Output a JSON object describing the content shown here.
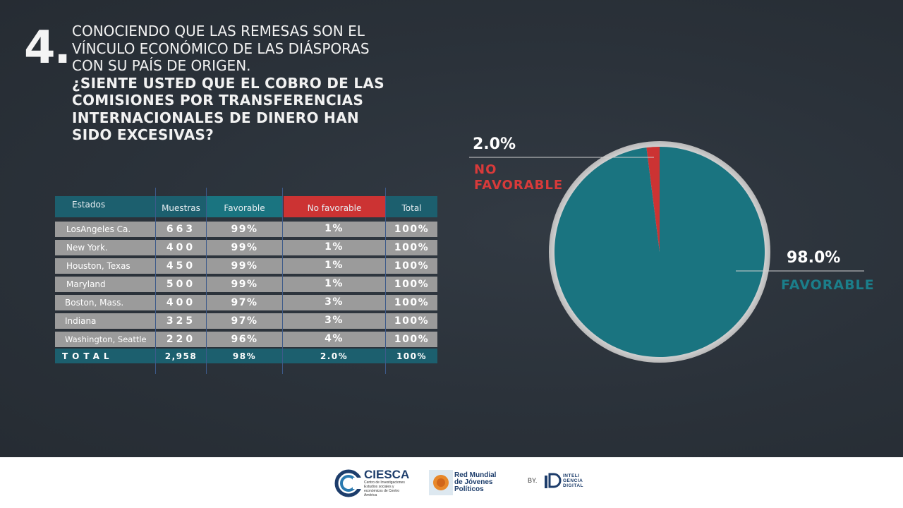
{
  "question": {
    "number": "4.",
    "intro": "CONOCIENDO QUE LAS REMESAS SON EL VÍNCULO ECONÓMICO DE LAS DIÁSPORAS CON SU PAÍS DE ORIGEN.",
    "ask": "¿SIENTE USTED  QUE EL COBRO DE LAS COMISIONES POR TRANSFERENCIAS INTERNACIONALES DE DINERO HAN SIDO EXCESIVAS?"
  },
  "table": {
    "headers": [
      "Estados",
      "Muestras",
      "Favorable",
      "No favorable",
      "Total"
    ],
    "rows": [
      {
        "state": "LosAngeles Ca.",
        "samples": "663",
        "favorable": "99%",
        "unfavorable": "1%",
        "total": "100%"
      },
      {
        "state": "New York.",
        "samples": "400",
        "favorable": "99%",
        "unfavorable": "1%",
        "total": "100%"
      },
      {
        "state": "Houston, Texas",
        "samples": "450",
        "favorable": "99%",
        "unfavorable": "1%",
        "total": "100%"
      },
      {
        "state": "Maryland",
        "samples": "500",
        "favorable": "99%",
        "unfavorable": "1%",
        "total": "100%"
      },
      {
        "state": "Boston, Mass.",
        "samples": "400",
        "favorable": "97%",
        "unfavorable": "3%",
        "total": "100%"
      },
      {
        "state": "Indiana",
        "samples": "325",
        "favorable": "97%",
        "unfavorable": "3%",
        "total": "100%"
      },
      {
        "state": "Washington, Seattle",
        "samples": "220",
        "favorable": "96%",
        "unfavorable": "4%",
        "total": "100%"
      }
    ],
    "total_row": {
      "label": "TOTAL",
      "samples": "2,958",
      "favorable": "98%",
      "unfavorable": "2.0%",
      "total": "100%"
    }
  },
  "chart_data": {
    "type": "pie",
    "slices": [
      {
        "label": "FAVORABLE",
        "value": 98.0,
        "value_label": "98.0%",
        "color": "#1a7480"
      },
      {
        "label": "NO FAVORABLE",
        "value": 2.0,
        "value_label": "2.0%",
        "color": "#cc3333"
      }
    ]
  },
  "colors": {
    "header_teal": "#1c5f6e",
    "favorable_header": "#1a7480",
    "no_favorable_red": "#cc3333",
    "row_gray": "#9b9b9b",
    "pie_border": "#d8d8d8"
  },
  "footer": {
    "logos": [
      {
        "name": "CIESCA",
        "subtitle": "Centro de Investigaciones Estudios sociales y económicos de Centro América"
      },
      {
        "name": "Red Mundial de Jóvenes Políticos"
      }
    ],
    "by_label": "BY.",
    "brand": "INTELI GENCIA DIGITAL"
  }
}
